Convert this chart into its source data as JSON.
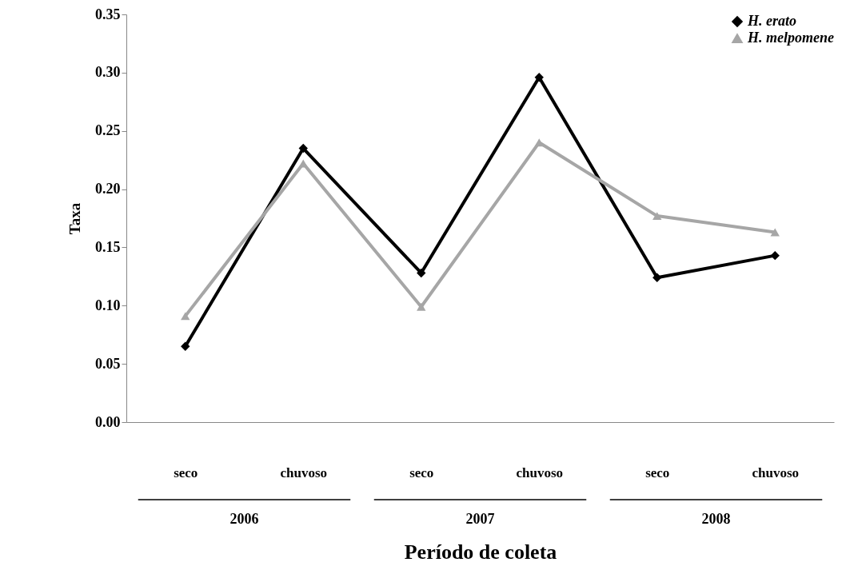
{
  "chart_data": {
    "type": "line",
    "xlabel": "Período de coleta",
    "ylabel": "Taxa",
    "categories": [
      "seco",
      "chuvoso",
      "seco",
      "chuvoso",
      "seco",
      "chuvoso"
    ],
    "annotations": [
      "2006",
      "2007",
      "2008"
    ],
    "series": [
      {
        "name": "H. erato",
        "color": "#000000",
        "marker": "diamond",
        "values": [
          0.065,
          0.235,
          0.128,
          0.296,
          0.124,
          0.143
        ]
      },
      {
        "name": "H. melpomene",
        "color": "#a6a6a6",
        "marker": "triangle",
        "values": [
          0.091,
          0.222,
          0.099,
          0.24,
          0.177,
          0.163
        ]
      }
    ],
    "ylim": [
      0,
      0.35
    ],
    "yticks": [
      {
        "value": 0,
        "label": "0.00"
      },
      {
        "value": 0.05,
        "label": "0.05"
      },
      {
        "value": 0.1,
        "label": "0.10"
      },
      {
        "value": 0.15,
        "label": "0.15"
      },
      {
        "value": 0.2,
        "label": "0.20"
      },
      {
        "value": 0.25,
        "label": "0.25"
      },
      {
        "value": 0.3,
        "label": "0.30"
      },
      {
        "value": 0.35,
        "label": "0.35"
      }
    ],
    "grid": false,
    "legend": "top right",
    "line_style": "solid"
  }
}
